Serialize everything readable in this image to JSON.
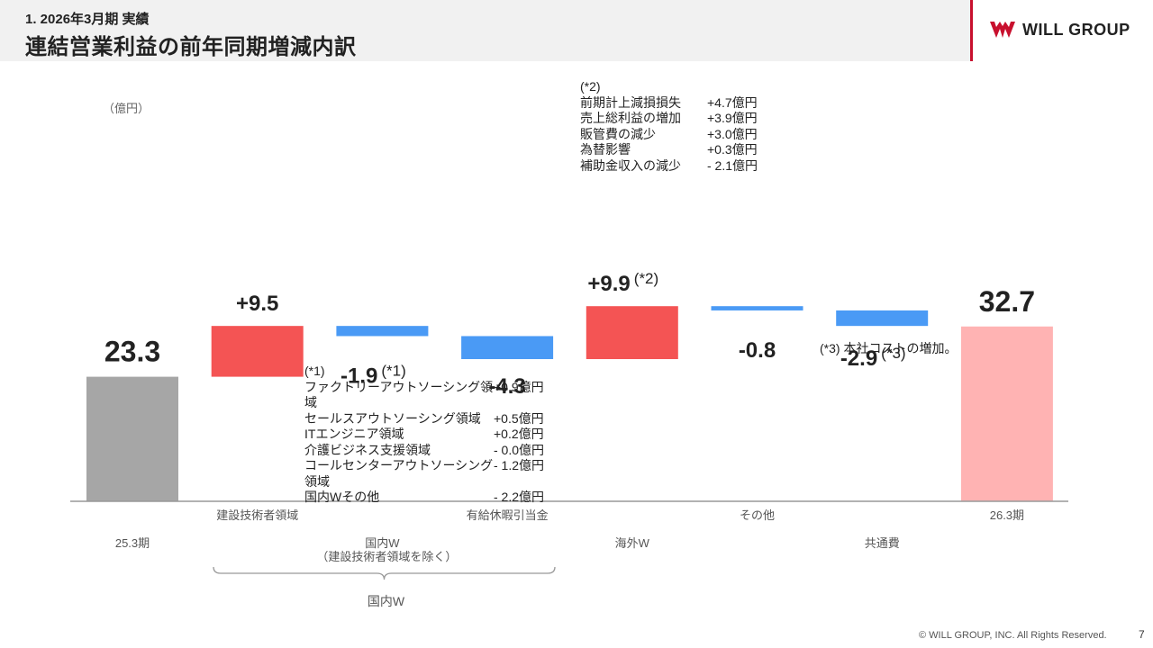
{
  "header": {
    "kicker": "1. 2026年3月期 実績",
    "title": "連結営業利益の前年同期増減内訳"
  },
  "logo": {
    "text": "WILL GROUP",
    "icon": "will-group-logo-icon",
    "color": "#c8102e"
  },
  "chart_data": {
    "type": "waterfall",
    "unit": "（億円）",
    "steps": [
      {
        "id": "start",
        "kind": "total",
        "value": 23.3,
        "label": "23.3",
        "category": "",
        "group": "25.3期",
        "color": "#a6a6a6"
      },
      {
        "id": "construction",
        "kind": "delta",
        "value": 9.5,
        "label": "+9.5",
        "category": "建設技術者領域",
        "group": "",
        "color": "#f45454"
      },
      {
        "id": "domestic",
        "kind": "delta",
        "value": -1.9,
        "label": "-1.9",
        "ref": "(*1)",
        "category": "",
        "group": "国内W\n（建設技術者領域を除く）",
        "color": "#4a9af5"
      },
      {
        "id": "paid-leave",
        "kind": "delta",
        "value": -4.3,
        "label": "-4.3",
        "category": "有給休暇引当金",
        "group": "",
        "color": "#4a9af5"
      },
      {
        "id": "overseas",
        "kind": "delta",
        "value": 9.9,
        "label": "+9.9",
        "ref": "(*2)",
        "category": "",
        "group": "海外W",
        "color": "#f45454"
      },
      {
        "id": "other",
        "kind": "delta",
        "value": -0.8,
        "label": "-0.8",
        "category": "その他",
        "group": "",
        "color": "#4a9af5"
      },
      {
        "id": "common",
        "kind": "delta",
        "value": -2.9,
        "label": "-2.9",
        "ref": "(*3)",
        "category": "",
        "group": "共通費",
        "color": "#4a9af5"
      },
      {
        "id": "end",
        "kind": "total",
        "value": 32.7,
        "label": "32.7",
        "category": "26.3期",
        "group": "",
        "color": "#ffb3b3"
      }
    ],
    "brace_label": "国内W"
  },
  "notes": {
    "n1": {
      "head": "(*1)",
      "rows": [
        {
          "label": "ファクトリーアウトソーシング領域",
          "value": "+0.9億円"
        },
        {
          "label": "セールスアウトソーシング領域",
          "value": "+0.5億円"
        },
        {
          "label": "ITエンジニア領域",
          "value": "+0.2億円"
        },
        {
          "label": "介護ビジネス支援領域",
          "value": "- 0.0億円"
        },
        {
          "label": "コールセンターアウトソーシング領域",
          "value": "- 1.2億円"
        },
        {
          "label": "国内Wその他",
          "value": "- 2.2億円"
        }
      ]
    },
    "n2": {
      "head": "(*2)",
      "rows": [
        {
          "label": "前期計上減損損失",
          "value": "+4.7億円"
        },
        {
          "label": "売上総利益の増加",
          "value": "+3.9億円"
        },
        {
          "label": "販管費の減少",
          "value": "+3.0億円"
        },
        {
          "label": "為替影響",
          "value": "+0.3億円"
        },
        {
          "label": "補助金収入の減少",
          "value": "- 2.1億円"
        }
      ]
    },
    "n3": {
      "text": "(*3) 本社コストの増加。"
    }
  },
  "footer": {
    "copyright": "© WILL GROUP, INC. All Rights Reserved.",
    "page": "7"
  }
}
